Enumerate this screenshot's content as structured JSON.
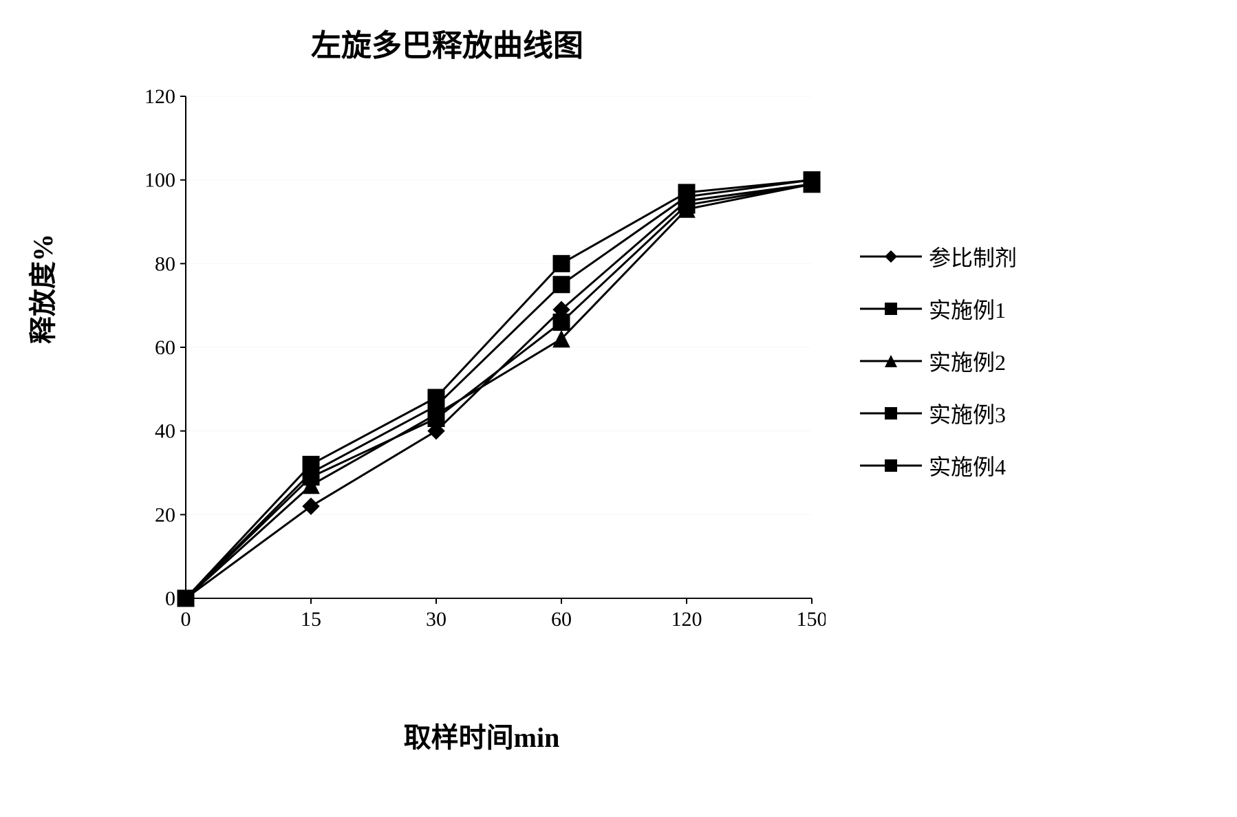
{
  "type": "line",
  "title": "左旋多巴释放曲线图",
  "ylabel": "释放度%",
  "xlabel": "取样时间min",
  "title_fontsize": 44,
  "label_fontsize": 40,
  "tick_fontsize": 30,
  "legend_fontsize": 32,
  "background_color": "#ffffff",
  "line_color": "#000000",
  "axis_color": "#000000",
  "gridline_color": "#cccccc",
  "line_width": 3,
  "marker_size": 12,
  "x_categories": [
    "0",
    "15",
    "30",
    "60",
    "120",
    "150"
  ],
  "y_ticks": [
    0,
    20,
    40,
    60,
    80,
    100,
    120
  ],
  "ylim": [
    0,
    120
  ],
  "legend_position": "right",
  "series": [
    {
      "name": "参比制剂",
      "marker": "diamond",
      "values": [
        0,
        22,
        40,
        69,
        95,
        99
      ]
    },
    {
      "name": "实施例1",
      "marker": "square",
      "values": [
        0,
        30,
        46,
        75,
        96,
        100
      ]
    },
    {
      "name": "实施例2",
      "marker": "triangle",
      "values": [
        0,
        27,
        44,
        62,
        93,
        99
      ]
    },
    {
      "name": "实施例3",
      "marker": "square",
      "values": [
        0,
        32,
        48,
        80,
        97,
        100
      ]
    },
    {
      "name": "实施例4",
      "marker": "square",
      "values": [
        0,
        29,
        43,
        66,
        94,
        99
      ]
    }
  ]
}
